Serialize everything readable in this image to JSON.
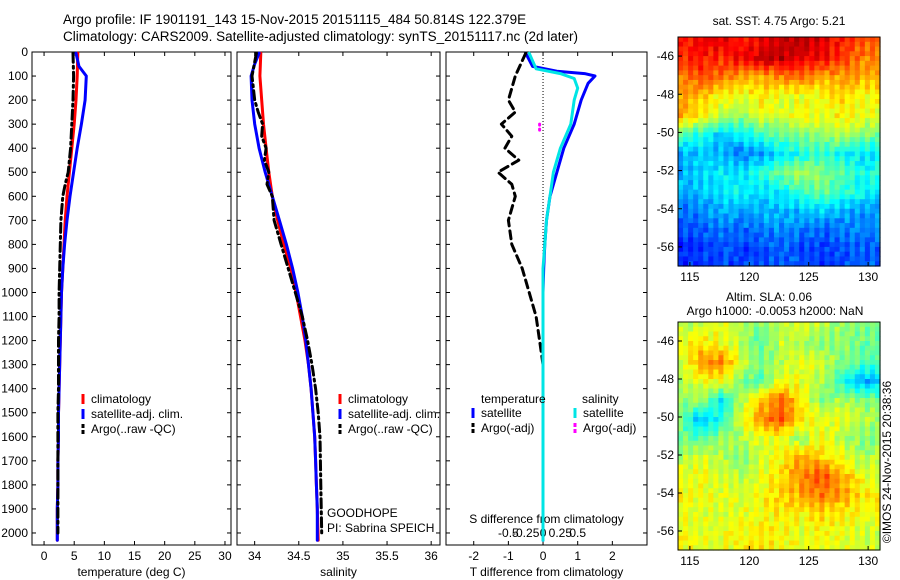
{
  "header": {
    "line1": "Argo profile: IF 1901191_143 15-Nov-2015 20151115_484 50.814S 122.379E",
    "line2": "Climatology: CARS2009. Satellite-adjusted climatology: synTS_20151117.nc (2d later)"
  },
  "colors": {
    "climatology": "#ff0000",
    "satellite": "#0000ff",
    "argo": "#000000",
    "sat_salinity": "#00e5e5",
    "argo_adj_salinity": "#ff00ff"
  },
  "chart_data": [
    {
      "type": "line",
      "id": "temperature",
      "xlabel": "temperature (deg C)",
      "ylabel": "",
      "xlim": [
        -2,
        31
      ],
      "ylim": [
        0,
        2050
      ],
      "y_reversed": true,
      "xticks": [
        "0",
        "5",
        "10",
        "15",
        "20",
        "25",
        "30"
      ],
      "xtick_values": [
        0,
        5,
        10,
        15,
        20,
        25,
        30
      ],
      "yticks": [
        "0",
        "100",
        "200",
        "300",
        "400",
        "500",
        "600",
        "700",
        "800",
        "900",
        "1000",
        "1100",
        "1200",
        "1300",
        "1400",
        "1500",
        "1600",
        "1700",
        "1800",
        "1900",
        "2000"
      ],
      "ytick_values": [
        0,
        100,
        200,
        300,
        400,
        500,
        600,
        700,
        800,
        900,
        1000,
        1100,
        1200,
        1300,
        1400,
        1500,
        1600,
        1700,
        1800,
        1900,
        2000
      ],
      "legend_position": "lower-right",
      "series": [
        {
          "name": "climatology",
          "style": "solid",
          "color": "#ff0000",
          "x": [
            5.6,
            5.5,
            5.3,
            5.0,
            4.6,
            4.2,
            3.8,
            3.5,
            3.3,
            3.1,
            2.9,
            2.8,
            2.7,
            2.6,
            2.5,
            2.4,
            2.4,
            2.3,
            2.3,
            2.2,
            2.2
          ],
          "y": [
            5,
            100,
            200,
            300,
            400,
            500,
            600,
            700,
            800,
            900,
            1000,
            1100,
            1200,
            1300,
            1400,
            1500,
            1600,
            1700,
            1800,
            1900,
            2030
          ]
        },
        {
          "name": "satellite-adj. clim.",
          "style": "solid",
          "color": "#0000ff",
          "x": [
            5.3,
            5.8,
            7.0,
            6.8,
            6.2,
            5.5,
            4.9,
            4.3,
            3.8,
            3.4,
            3.1,
            2.9,
            2.8,
            2.7,
            2.6,
            2.5,
            2.4,
            2.4,
            2.3,
            2.3,
            2.2,
            2.2
          ],
          "y": [
            5,
            60,
            100,
            200,
            300,
            400,
            500,
            600,
            700,
            800,
            900,
            1000,
            1100,
            1200,
            1300,
            1400,
            1500,
            1600,
            1700,
            1800,
            1900,
            2030
          ]
        },
        {
          "name": "Argo(..raw -QC)",
          "style": "dashdot",
          "color": "#000000",
          "x": [
            4.8,
            4.9,
            4.8,
            4.6,
            4.4,
            4.0,
            3.5,
            3.1,
            2.8,
            2.7,
            2.6,
            2.5,
            2.5,
            2.4,
            2.4,
            2.4,
            2.3,
            2.3,
            2.3,
            2.3,
            2.3,
            2.3
          ],
          "y": [
            5,
            100,
            200,
            300,
            400,
            500,
            550,
            600,
            700,
            800,
            900,
            1000,
            1100,
            1200,
            1300,
            1400,
            1500,
            1600,
            1700,
            1800,
            1900,
            2000
          ]
        }
      ]
    },
    {
      "type": "line",
      "id": "salinity",
      "xlabel": "salinity",
      "xlim": [
        33.8,
        36.1
      ],
      "ylim": [
        0,
        2050
      ],
      "y_reversed": true,
      "xticks": [
        "34",
        "34.5",
        "35",
        "35.5",
        "36"
      ],
      "xtick_values": [
        34,
        34.5,
        35,
        35.5,
        36
      ],
      "legend_position": "lower-right",
      "annotations": [
        "GOODHOPE",
        "PI: Sabrina SPEICH"
      ],
      "series": [
        {
          "name": "climatology",
          "style": "solid",
          "color": "#ff0000",
          "x": [
            34.07,
            34.06,
            34.08,
            34.1,
            34.13,
            34.16,
            34.2,
            34.26,
            34.33,
            34.41,
            34.47,
            34.52,
            34.57,
            34.61,
            34.64,
            34.66,
            34.68,
            34.69,
            34.7,
            34.71,
            34.72
          ],
          "y": [
            5,
            100,
            200,
            300,
            400,
            500,
            600,
            700,
            800,
            900,
            1000,
            1100,
            1200,
            1300,
            1400,
            1500,
            1600,
            1700,
            1800,
            1900,
            2030
          ]
        },
        {
          "name": "satellite-adj. clim.",
          "style": "solid",
          "color": "#0000ff",
          "x": [
            34.05,
            34.0,
            33.96,
            33.97,
            34.0,
            34.05,
            34.12,
            34.2,
            34.28,
            34.36,
            34.43,
            34.49,
            34.54,
            34.58,
            34.61,
            34.64,
            34.66,
            34.68,
            34.69,
            34.7,
            34.71,
            34.71
          ],
          "y": [
            5,
            50,
            100,
            200,
            300,
            400,
            500,
            600,
            700,
            800,
            900,
            1000,
            1100,
            1200,
            1300,
            1400,
            1500,
            1600,
            1700,
            1800,
            1900,
            2030
          ]
        },
        {
          "name": "Argo(..raw -QC)",
          "style": "dashdot",
          "color": "#000000",
          "x": [
            34.02,
            33.97,
            34.0,
            34.04,
            34.09,
            34.08,
            34.13,
            34.11,
            34.16,
            34.14,
            34.2,
            34.22,
            34.3,
            34.38,
            34.46,
            34.54,
            34.6,
            34.65,
            34.69,
            34.72,
            34.74,
            34.75,
            34.76
          ],
          "y": [
            5,
            100,
            200,
            250,
            300,
            350,
            400,
            450,
            500,
            550,
            600,
            700,
            800,
            900,
            1000,
            1100,
            1200,
            1300,
            1400,
            1500,
            1600,
            1800,
            2000
          ]
        }
      ]
    },
    {
      "type": "line",
      "id": "difference",
      "xlabel": "T difference from climatology",
      "xlabel_top": "S difference from climatology",
      "xlim": [
        -2.8,
        3.0
      ],
      "ylim": [
        0,
        2050
      ],
      "y_reversed": true,
      "xticks": [
        "-2",
        "-1",
        "0",
        "1",
        "2"
      ],
      "xtick_values": [
        -2,
        -1,
        0,
        1,
        2
      ],
      "xticks_top": [
        "-0.5",
        "-0.25",
        "0",
        "0.25",
        "0.5"
      ],
      "legend_position": "lower-center",
      "legend_headers": [
        "temperature",
        "salinity"
      ],
      "series": [
        {
          "name": "satellite",
          "group": "temperature",
          "style": "solid",
          "color": "#0000ff",
          "x": [
            -0.5,
            -0.3,
            0.4,
            1.2,
            1.5,
            1.3,
            1.1,
            0.9,
            0.6,
            0.4,
            0.2,
            0.1,
            0.05,
            0.02,
            0.0,
            0.0,
            0.0,
            0.0,
            0.0,
            0.0,
            0.0,
            0.0,
            0.0
          ],
          "y": [
            5,
            60,
            80,
            90,
            100,
            130,
            200,
            300,
            400,
            500,
            600,
            700,
            800,
            900,
            1000,
            1100,
            1200,
            1300,
            1400,
            1500,
            1600,
            1800,
            2030
          ]
        },
        {
          "name": "Argo(-adj)",
          "group": "temperature",
          "style": "dashed",
          "color": "#000000",
          "x": [
            -0.5,
            -0.8,
            -1.0,
            -0.8,
            -1.2,
            -0.9,
            -1.1,
            -0.7,
            -1.3,
            -0.9,
            -0.8,
            -1.0,
            -0.9,
            -0.6,
            -0.4,
            -0.2,
            -0.1,
            0.0,
            0.0,
            0.0,
            0.0
          ],
          "y": [
            5,
            100,
            200,
            250,
            300,
            350,
            400,
            450,
            500,
            550,
            600,
            700,
            800,
            900,
            1000,
            1100,
            1200,
            1300,
            1500,
            1800,
            2000
          ]
        },
        {
          "name": "satellite",
          "group": "salinity",
          "style": "solid",
          "color": "#00e5e5",
          "x": [
            -0.4,
            -0.2,
            0.5,
            0.9,
            1.0,
            0.9,
            0.8,
            0.5,
            0.3,
            0.2,
            0.1,
            0.05,
            0.0,
            0.0,
            0.0,
            0.0,
            0.0,
            0.0,
            0.0
          ],
          "y": [
            5,
            70,
            90,
            110,
            150,
            200,
            300,
            400,
            500,
            600,
            700,
            800,
            900,
            1000,
            1200,
            1400,
            1600,
            1800,
            2030
          ]
        },
        {
          "name": "Argo(-adj)",
          "group": "salinity",
          "style": "dots",
          "color": "#ff00ff",
          "x": [
            -0.1,
            -0.1
          ],
          "y": [
            300,
            340
          ]
        }
      ]
    },
    {
      "type": "heatmap",
      "id": "sst_map",
      "title": "sat. SST: 4.75  Argo: 5.21",
      "xlim": [
        114,
        131
      ],
      "ylim": [
        -57,
        -45
      ],
      "xticks": [
        "115",
        "120",
        "125",
        "130"
      ],
      "xtick_values": [
        115,
        120,
        125,
        130
      ],
      "yticks": [
        "-46",
        "-48",
        "-50",
        "-52",
        "-54",
        "-56"
      ],
      "ytick_values": [
        -46,
        -48,
        -50,
        -52,
        -54,
        -56
      ],
      "field": "sea surface temperature",
      "colormap": "jet",
      "pattern": [
        [
          0.85,
          0.9,
          0.9,
          0.85,
          0.88,
          0.92,
          0.95,
          0.9,
          0.85,
          0.8
        ],
        [
          0.82,
          0.86,
          0.84,
          0.88,
          0.92,
          0.95,
          0.9,
          0.88,
          0.82,
          0.75
        ],
        [
          0.75,
          0.8,
          0.76,
          0.72,
          0.7,
          0.74,
          0.78,
          0.7,
          0.72,
          0.7
        ],
        [
          0.72,
          0.68,
          0.62,
          0.6,
          0.64,
          0.6,
          0.6,
          0.62,
          0.66,
          0.62
        ],
        [
          0.7,
          0.65,
          0.55,
          0.52,
          0.6,
          0.58,
          0.62,
          0.6,
          0.64,
          0.6
        ],
        [
          0.45,
          0.4,
          0.32,
          0.38,
          0.42,
          0.48,
          0.5,
          0.52,
          0.55,
          0.5
        ],
        [
          0.3,
          0.32,
          0.3,
          0.25,
          0.28,
          0.35,
          0.4,
          0.42,
          0.38,
          0.35
        ],
        [
          0.3,
          0.33,
          0.36,
          0.35,
          0.42,
          0.48,
          0.55,
          0.5,
          0.45,
          0.4
        ],
        [
          0.3,
          0.32,
          0.35,
          0.38,
          0.34,
          0.36,
          0.44,
          0.48,
          0.42,
          0.38
        ],
        [
          0.22,
          0.25,
          0.3,
          0.28,
          0.3,
          0.32,
          0.3,
          0.34,
          0.3,
          0.28
        ],
        [
          0.2,
          0.22,
          0.24,
          0.22,
          0.25,
          0.26,
          0.24,
          0.22,
          0.25,
          0.24
        ],
        [
          0.15,
          0.18,
          0.2,
          0.18,
          0.2,
          0.22,
          0.2,
          0.18,
          0.2,
          0.22
        ]
      ]
    },
    {
      "type": "heatmap",
      "id": "sla_map",
      "title": "Altim. SLA: 0.06",
      "subtitle": "Argo h1000: -0.0053 h2000: NaN",
      "xlim": [
        114,
        131
      ],
      "ylim": [
        -57,
        -45
      ],
      "xticks": [
        "115",
        "120",
        "125",
        "130"
      ],
      "xtick_values": [
        115,
        120,
        125,
        130
      ],
      "yticks": [
        "-46",
        "-48",
        "-50",
        "-52",
        "-54",
        "-56"
      ],
      "ytick_values": [
        -46,
        -48,
        -50,
        -52,
        -54,
        -56
      ],
      "field": "sea level anomaly",
      "colormap": "jet",
      "pattern": [
        [
          0.55,
          0.58,
          0.6,
          0.55,
          0.5,
          0.55,
          0.6,
          0.55,
          0.52,
          0.5
        ],
        [
          0.6,
          0.65,
          0.62,
          0.55,
          0.45,
          0.58,
          0.55,
          0.5,
          0.52,
          0.48
        ],
        [
          0.58,
          0.72,
          0.75,
          0.6,
          0.5,
          0.55,
          0.62,
          0.58,
          0.5,
          0.45
        ],
        [
          0.55,
          0.6,
          0.62,
          0.5,
          0.45,
          0.62,
          0.6,
          0.55,
          0.4,
          0.3
        ],
        [
          0.5,
          0.55,
          0.35,
          0.55,
          0.68,
          0.78,
          0.62,
          0.5,
          0.55,
          0.5
        ],
        [
          0.48,
          0.3,
          0.4,
          0.6,
          0.72,
          0.8,
          0.65,
          0.6,
          0.6,
          0.55
        ],
        [
          0.5,
          0.45,
          0.52,
          0.55,
          0.6,
          0.6,
          0.52,
          0.62,
          0.55,
          0.5
        ],
        [
          0.55,
          0.58,
          0.55,
          0.5,
          0.58,
          0.62,
          0.72,
          0.66,
          0.6,
          0.55
        ],
        [
          0.6,
          0.62,
          0.58,
          0.55,
          0.6,
          0.65,
          0.75,
          0.8,
          0.7,
          0.6
        ],
        [
          0.62,
          0.6,
          0.6,
          0.58,
          0.62,
          0.68,
          0.7,
          0.76,
          0.72,
          0.65
        ],
        [
          0.6,
          0.6,
          0.58,
          0.6,
          0.62,
          0.64,
          0.62,
          0.66,
          0.64,
          0.6
        ],
        [
          0.62,
          0.6,
          0.6,
          0.62,
          0.65,
          0.62,
          0.6,
          0.62,
          0.6,
          0.58
        ]
      ],
      "side_label": "©IMOS 24-Nov-2015 20:38:36"
    }
  ]
}
